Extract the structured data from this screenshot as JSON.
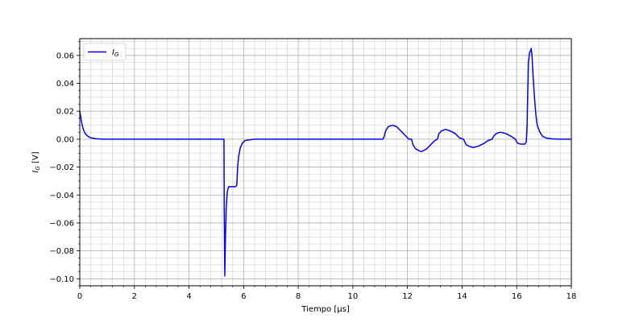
{
  "chart_data": {
    "type": "line",
    "xlabel": "Tiempo [μs]",
    "ylabel": "I_G [V]",
    "xlim": [
      0,
      18
    ],
    "ylim": [
      -0.105,
      0.072
    ],
    "grid": "major and minor",
    "legend_position": "upper-left",
    "x_ticks": [
      0,
      2,
      4,
      6,
      8,
      10,
      12,
      14,
      16,
      18
    ],
    "x_tick_labels": [
      "0",
      "2",
      "4",
      "6",
      "8",
      "10",
      "12",
      "14",
      "16",
      "18"
    ],
    "y_ticks": [
      -0.1,
      -0.08,
      -0.06,
      -0.04,
      -0.02,
      0.0,
      0.02,
      0.04,
      0.06
    ],
    "y_tick_labels": [
      "−0.10",
      "−0.08",
      "−0.06",
      "−0.04",
      "−0.02",
      "0.00",
      "0.02",
      "0.04",
      "0.06"
    ],
    "series": [
      {
        "name": "I_G",
        "color": "#0000ff",
        "points": [
          [
            0.0,
            0.02
          ],
          [
            0.05,
            0.014
          ],
          [
            0.1,
            0.009
          ],
          [
            0.15,
            0.006
          ],
          [
            0.2,
            0.004
          ],
          [
            0.3,
            0.002
          ],
          [
            0.4,
            0.001
          ],
          [
            0.6,
            0.0003
          ],
          [
            0.8,
            0.0001
          ],
          [
            1.0,
            0.0
          ],
          [
            5.28,
            0.0
          ],
          [
            5.29,
            -0.05
          ],
          [
            5.31,
            -0.098
          ],
          [
            5.33,
            -0.075
          ],
          [
            5.36,
            -0.05
          ],
          [
            5.4,
            -0.038
          ],
          [
            5.45,
            -0.034
          ],
          [
            5.7,
            -0.034
          ],
          [
            5.75,
            -0.033
          ],
          [
            5.78,
            -0.02
          ],
          [
            5.82,
            -0.012
          ],
          [
            5.88,
            -0.006
          ],
          [
            5.95,
            -0.003
          ],
          [
            6.05,
            -0.001
          ],
          [
            6.2,
            -0.0005
          ],
          [
            6.4,
            0.0
          ],
          [
            11.1,
            0.0
          ],
          [
            11.15,
            0.002
          ],
          [
            11.2,
            0.006
          ],
          [
            11.3,
            0.009
          ],
          [
            11.45,
            0.01
          ],
          [
            11.6,
            0.009
          ],
          [
            11.8,
            0.005
          ],
          [
            11.95,
            0.002
          ],
          [
            12.05,
            0.0
          ],
          [
            12.15,
            0.0
          ],
          [
            12.2,
            -0.004
          ],
          [
            12.3,
            -0.007
          ],
          [
            12.5,
            -0.009
          ],
          [
            12.7,
            -0.007
          ],
          [
            12.9,
            -0.003
          ],
          [
            13.0,
            -0.001
          ],
          [
            13.1,
            0.0
          ],
          [
            13.15,
            0.004
          ],
          [
            13.25,
            0.006
          ],
          [
            13.4,
            0.007
          ],
          [
            13.55,
            0.006
          ],
          [
            13.75,
            0.004
          ],
          [
            13.9,
            0.001
          ],
          [
            14.05,
            0.0
          ],
          [
            14.1,
            -0.002
          ],
          [
            14.15,
            -0.004
          ],
          [
            14.25,
            -0.005
          ],
          [
            14.4,
            -0.006
          ],
          [
            14.6,
            -0.005
          ],
          [
            14.8,
            -0.003
          ],
          [
            14.95,
            -0.001
          ],
          [
            15.1,
            0.0
          ],
          [
            15.15,
            0.002
          ],
          [
            15.25,
            0.004
          ],
          [
            15.4,
            0.005
          ],
          [
            15.6,
            0.004
          ],
          [
            15.8,
            0.002
          ],
          [
            15.95,
            0.0
          ],
          [
            16.0,
            -0.002
          ],
          [
            16.05,
            -0.003
          ],
          [
            16.15,
            -0.0035
          ],
          [
            16.3,
            -0.0035
          ],
          [
            16.35,
            -0.002
          ],
          [
            16.38,
            0.01
          ],
          [
            16.4,
            0.03
          ],
          [
            16.43,
            0.055
          ],
          [
            16.47,
            0.062
          ],
          [
            16.5,
            0.063
          ],
          [
            16.53,
            0.065
          ],
          [
            16.56,
            0.06
          ],
          [
            16.6,
            0.045
          ],
          [
            16.65,
            0.03
          ],
          [
            16.7,
            0.018
          ],
          [
            16.75,
            0.01
          ],
          [
            16.85,
            0.005
          ],
          [
            16.95,
            0.002
          ],
          [
            17.1,
            0.0007
          ],
          [
            17.3,
            0.0002
          ],
          [
            17.6,
            0.0
          ],
          [
            18.0,
            0.0
          ]
        ]
      }
    ]
  }
}
